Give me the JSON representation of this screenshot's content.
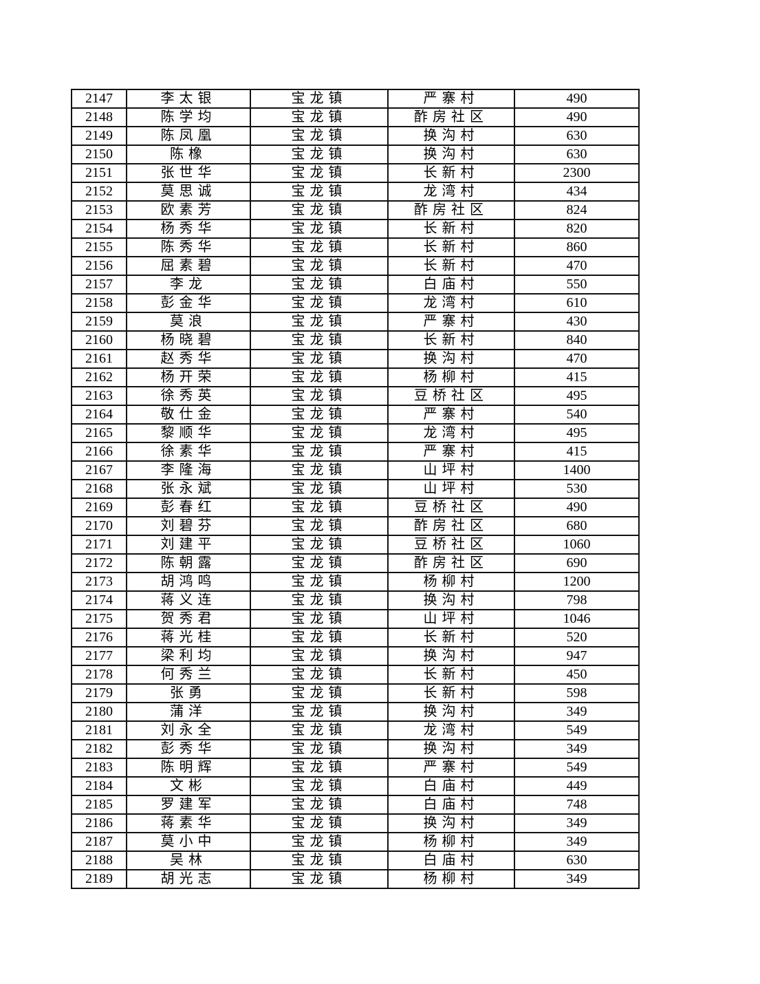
{
  "page": {
    "background_color": "#ffffff",
    "text_color": "#000000",
    "grid_color": "#111111"
  },
  "table": {
    "fields": [
      "id",
      "name",
      "town",
      "village",
      "amount"
    ],
    "field_types": {
      "id": "num",
      "name": "cjk",
      "town": "cjk",
      "village": "cjk",
      "amount": "num"
    },
    "rows": [
      {
        "id": "2147",
        "name": "李太银",
        "town": "宝龙镇",
        "village": "严寨村",
        "amount": "490"
      },
      {
        "id": "2148",
        "name": "陈学均",
        "town": "宝龙镇",
        "village": "酢房社区",
        "amount": "490"
      },
      {
        "id": "2149",
        "name": "陈凤凰",
        "town": "宝龙镇",
        "village": "换沟村",
        "amount": "630"
      },
      {
        "id": "2150",
        "name": "陈橡",
        "town": "宝龙镇",
        "village": "换沟村",
        "amount": "630"
      },
      {
        "id": "2151",
        "name": "张世华",
        "town": "宝龙镇",
        "village": "长新村",
        "amount": "2300"
      },
      {
        "id": "2152",
        "name": "莫思诚",
        "town": "宝龙镇",
        "village": "龙湾村",
        "amount": "434"
      },
      {
        "id": "2153",
        "name": "欧素芳",
        "town": "宝龙镇",
        "village": "酢房社区",
        "amount": "824"
      },
      {
        "id": "2154",
        "name": "杨秀华",
        "town": "宝龙镇",
        "village": "长新村",
        "amount": "820"
      },
      {
        "id": "2155",
        "name": "陈秀华",
        "town": "宝龙镇",
        "village": "长新村",
        "amount": "860"
      },
      {
        "id": "2156",
        "name": "屈素碧",
        "town": "宝龙镇",
        "village": "长新村",
        "amount": "470"
      },
      {
        "id": "2157",
        "name": "李龙",
        "town": "宝龙镇",
        "village": "白庙村",
        "amount": "550"
      },
      {
        "id": "2158",
        "name": "彭金华",
        "town": "宝龙镇",
        "village": "龙湾村",
        "amount": "610"
      },
      {
        "id": "2159",
        "name": "莫浪",
        "town": "宝龙镇",
        "village": "严寨村",
        "amount": "430"
      },
      {
        "id": "2160",
        "name": "杨晓碧",
        "town": "宝龙镇",
        "village": "长新村",
        "amount": "840"
      },
      {
        "id": "2161",
        "name": "赵秀华",
        "town": "宝龙镇",
        "village": "换沟村",
        "amount": "470"
      },
      {
        "id": "2162",
        "name": "杨开荣",
        "town": "宝龙镇",
        "village": "杨柳村",
        "amount": "415"
      },
      {
        "id": "2163",
        "name": "徐秀英",
        "town": "宝龙镇",
        "village": "豆桥社区",
        "amount": "495"
      },
      {
        "id": "2164",
        "name": "敬仕金",
        "town": "宝龙镇",
        "village": "严寨村",
        "amount": "540"
      },
      {
        "id": "2165",
        "name": "黎顺华",
        "town": "宝龙镇",
        "village": "龙湾村",
        "amount": "495"
      },
      {
        "id": "2166",
        "name": "徐素华",
        "town": "宝龙镇",
        "village": "严寨村",
        "amount": "415"
      },
      {
        "id": "2167",
        "name": "李隆海",
        "town": "宝龙镇",
        "village": "山坪村",
        "amount": "1400"
      },
      {
        "id": "2168",
        "name": "张永斌",
        "town": "宝龙镇",
        "village": "山坪村",
        "amount": "530"
      },
      {
        "id": "2169",
        "name": "彭春红",
        "town": "宝龙镇",
        "village": "豆桥社区",
        "amount": "490"
      },
      {
        "id": "2170",
        "name": "刘碧芬",
        "town": "宝龙镇",
        "village": "酢房社区",
        "amount": "680"
      },
      {
        "id": "2171",
        "name": "刘建平",
        "town": "宝龙镇",
        "village": "豆桥社区",
        "amount": "1060"
      },
      {
        "id": "2172",
        "name": "陈朝露",
        "town": "宝龙镇",
        "village": "酢房社区",
        "amount": "690"
      },
      {
        "id": "2173",
        "name": "胡鸿鸣",
        "town": "宝龙镇",
        "village": "杨柳村",
        "amount": "1200"
      },
      {
        "id": "2174",
        "name": "蒋义连",
        "town": "宝龙镇",
        "village": "换沟村",
        "amount": "798"
      },
      {
        "id": "2175",
        "name": "贺秀君",
        "town": "宝龙镇",
        "village": "山坪村",
        "amount": "1046"
      },
      {
        "id": "2176",
        "name": "蒋光桂",
        "town": "宝龙镇",
        "village": "长新村",
        "amount": "520"
      },
      {
        "id": "2177",
        "name": "梁利均",
        "town": "宝龙镇",
        "village": "换沟村",
        "amount": "947"
      },
      {
        "id": "2178",
        "name": "何秀兰",
        "town": "宝龙镇",
        "village": "长新村",
        "amount": "450"
      },
      {
        "id": "2179",
        "name": "张勇",
        "town": "宝龙镇",
        "village": "长新村",
        "amount": "598"
      },
      {
        "id": "2180",
        "name": "蒲洋",
        "town": "宝龙镇",
        "village": "换沟村",
        "amount": "349"
      },
      {
        "id": "2181",
        "name": "刘永全",
        "town": "宝龙镇",
        "village": "龙湾村",
        "amount": "549"
      },
      {
        "id": "2182",
        "name": "彭秀华",
        "town": "宝龙镇",
        "village": "换沟村",
        "amount": "349"
      },
      {
        "id": "2183",
        "name": "陈明辉",
        "town": "宝龙镇",
        "village": "严寨村",
        "amount": "549"
      },
      {
        "id": "2184",
        "name": "文彬",
        "town": "宝龙镇",
        "village": "白庙村",
        "amount": "449"
      },
      {
        "id": "2185",
        "name": "罗建军",
        "town": "宝龙镇",
        "village": "白庙村",
        "amount": "748"
      },
      {
        "id": "2186",
        "name": "蒋素华",
        "town": "宝龙镇",
        "village": "换沟村",
        "amount": "349"
      },
      {
        "id": "2187",
        "name": "莫小中",
        "town": "宝龙镇",
        "village": "杨柳村",
        "amount": "349"
      },
      {
        "id": "2188",
        "name": "吴林",
        "town": "宝龙镇",
        "village": "白庙村",
        "amount": "630"
      },
      {
        "id": "2189",
        "name": "胡光志",
        "town": "宝龙镇",
        "village": "杨柳村",
        "amount": "349"
      }
    ]
  }
}
